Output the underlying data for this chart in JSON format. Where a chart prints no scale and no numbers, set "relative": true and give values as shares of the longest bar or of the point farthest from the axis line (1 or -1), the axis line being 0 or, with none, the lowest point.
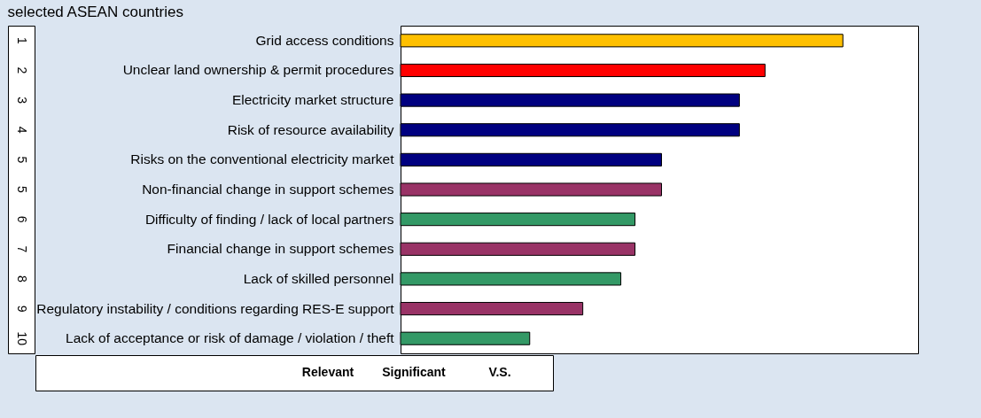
{
  "chart_data": {
    "type": "bar",
    "orientation": "horizontal",
    "relative": true,
    "title": "selected ASEAN countries",
    "categories": [
      "Grid access conditions",
      "Unclear land ownership & permit procedures",
      "Electricity market structure",
      "Risk of resource availability",
      "Risks on the conventional electricity market",
      "Non-financial change in support schemes",
      "Difficulty of finding / lack of local partners",
      "Financial change in support schemes",
      "Lack of skilled personnel",
      "Regulatory instability / conditions regarding RES-E support",
      "Lack of acceptance or risk of damage / violation / theft"
    ],
    "values": [
      1,
      0.824,
      0.766,
      0.766,
      0.59,
      0.59,
      0.53,
      0.53,
      0.498,
      0.412,
      0.292
    ],
    "colors": [
      "#ffc000",
      "#ff0000",
      "#000080",
      "#000080",
      "#000080",
      "#993366",
      "#339966",
      "#993366",
      "#339966",
      "#993366",
      "#339966"
    ],
    "annotations": [
      "1",
      "2",
      "3",
      "4",
      "5",
      "5",
      "6",
      "7",
      "8",
      "9",
      "10",
      "Relevant",
      "Significant",
      "V.S."
    ]
  }
}
